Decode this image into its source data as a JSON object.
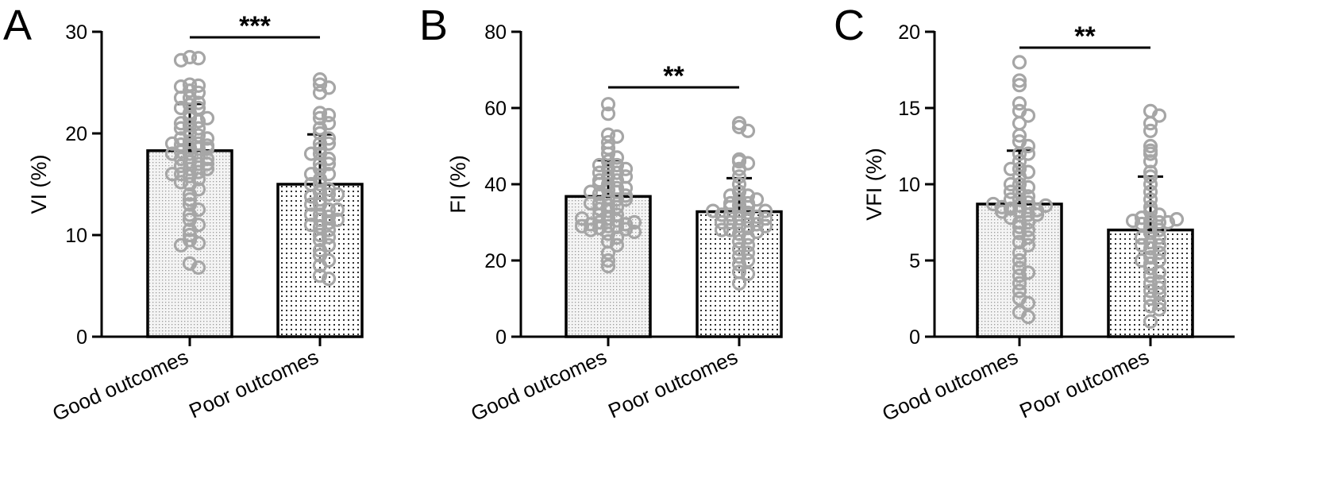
{
  "chart_data": [
    {
      "type": "bar",
      "panel": "A",
      "ylabel": "VI (%)",
      "ylim": [
        0,
        30
      ],
      "yticks": [
        0,
        10,
        20,
        30
      ],
      "categories": [
        "Good outcomes",
        "Poor outcomes"
      ],
      "values": [
        18.3,
        15.0
      ],
      "error_sd": [
        4.6,
        4.9
      ],
      "significance": "***",
      "points": [
        [
          27.5,
          27.4,
          27.2,
          24.8,
          24.7,
          24.6,
          24.2,
          24.0,
          23.5,
          23.0,
          22.8,
          22.5,
          22.0,
          21.5,
          21.2,
          21.0,
          20.8,
          20.5,
          20.0,
          19.8,
          19.5,
          19.2,
          19.0,
          18.9,
          18.8,
          18.6,
          18.5,
          18.2,
          18.0,
          17.8,
          17.5,
          17.2,
          17.0,
          16.8,
          16.5,
          16.2,
          16.0,
          15.8,
          15.5,
          15.2,
          15.0,
          14.5,
          14.0,
          13.5,
          13.0,
          12.5,
          12.0,
          11.5,
          11.0,
          10.5,
          10.0,
          9.5,
          9.2,
          9.0,
          7.2,
          6.8,
          16.5,
          17.5,
          18.5,
          19.5,
          20.5,
          21.5,
          22.5,
          23.5,
          16.0,
          17.0,
          18.0,
          19.0
        ],
        [
          25.3,
          24.8,
          24.5,
          24.0,
          22.0,
          21.8,
          21.5,
          21.0,
          20.5,
          20.0,
          19.5,
          19.0,
          18.5,
          18.0,
          17.5,
          17.0,
          16.5,
          16.0,
          15.5,
          15.0,
          14.5,
          14.2,
          14.0,
          13.8,
          13.5,
          13.0,
          12.5,
          12.0,
          11.8,
          11.5,
          11.2,
          11.0,
          10.8,
          10.5,
          10.0,
          9.8,
          9.5,
          9.0,
          8.5,
          8.0,
          7.5,
          7.0,
          6.0,
          5.7,
          12.0,
          13.0,
          14.0,
          15.0,
          16.0,
          17.0,
          18.0,
          19.0,
          11.5,
          12.5
        ]
      ]
    },
    {
      "type": "bar",
      "panel": "B",
      "ylabel": "FI (%)",
      "ylim": [
        0,
        80
      ],
      "yticks": [
        0,
        20,
        40,
        60,
        80
      ],
      "categories": [
        "Good outcomes",
        "Poor outcomes"
      ],
      "values": [
        36.8,
        32.8
      ],
      "error_sd": [
        9.5,
        8.8
      ],
      "significance": "**",
      "points": [
        [
          61.0,
          58.5,
          53.0,
          52.5,
          51.0,
          49.5,
          48.0,
          47.0,
          46.0,
          45.0,
          44.0,
          43.0,
          42.0,
          41.0,
          40.0,
          39.0,
          38.5,
          38.0,
          37.5,
          37.0,
          36.5,
          36.0,
          35.0,
          34.5,
          34.0,
          33.5,
          33.0,
          32.0,
          31.0,
          30.5,
          30.0,
          29.5,
          29.0,
          28.8,
          28.5,
          28.2,
          28.0,
          27.5,
          27.0,
          26.0,
          25.0,
          24.0,
          22.0,
          20.0,
          18.5,
          29.0,
          29.5,
          30.0,
          31.0,
          32.0,
          40.0,
          41.0,
          42.0,
          43.0,
          44.0,
          45.0,
          38.0,
          39.0,
          36.0,
          35.0
        ],
        [
          56.0,
          55.0,
          54.0,
          46.5,
          46.0,
          45.5,
          44.0,
          42.0,
          40.0,
          38.0,
          37.0,
          36.0,
          35.0,
          34.5,
          34.0,
          33.0,
          32.5,
          32.0,
          31.5,
          31.0,
          30.5,
          30.0,
          29.5,
          29.0,
          28.5,
          28.0,
          27.5,
          27.0,
          26.0,
          25.0,
          24.0,
          23.0,
          22.0,
          21.0,
          20.0,
          19.0,
          17.0,
          16.5,
          14.0,
          30.0,
          31.0,
          32.0,
          33.0,
          34.0,
          35.0,
          28.0,
          29.0,
          36.0,
          37.0,
          33.0
        ]
      ]
    },
    {
      "type": "bar",
      "panel": "C",
      "ylabel": "VFI (%)",
      "ylim": [
        0,
        20
      ],
      "yticks": [
        0,
        5,
        10,
        15,
        20
      ],
      "categories": [
        "Good outcomes",
        "Poor outcomes"
      ],
      "values": [
        8.7,
        7.0
      ],
      "error_sd": [
        3.5,
        3.5
      ],
      "significance": "**",
      "points": [
        [
          18.0,
          16.8,
          16.5,
          15.3,
          14.8,
          14.5,
          14.0,
          13.2,
          12.8,
          12.5,
          12.0,
          11.5,
          11.0,
          10.8,
          10.5,
          10.0,
          9.8,
          9.5,
          9.2,
          9.0,
          8.8,
          8.6,
          8.5,
          8.4,
          8.3,
          8.2,
          8.0,
          7.8,
          7.5,
          7.2,
          7.0,
          6.8,
          6.5,
          6.2,
          6.0,
          5.5,
          5.0,
          4.5,
          4.2,
          4.0,
          3.5,
          3.0,
          2.5,
          2.2,
          1.6,
          1.3,
          8.5,
          8.6,
          8.7,
          9.0,
          9.5,
          10.0,
          11.0,
          12.0,
          7.5,
          8.0,
          8.2
        ],
        [
          14.8,
          14.5,
          14.0,
          13.5,
          12.5,
          12.2,
          12.0,
          11.5,
          10.8,
          10.5,
          10.0,
          9.5,
          9.0,
          8.5,
          8.2,
          8.0,
          7.8,
          7.6,
          7.5,
          7.4,
          7.2,
          7.0,
          6.8,
          6.5,
          6.2,
          6.0,
          5.8,
          5.5,
          5.2,
          5.0,
          4.5,
          4.2,
          4.0,
          3.5,
          3.2,
          3.0,
          2.8,
          2.5,
          2.2,
          2.0,
          1.8,
          1.0,
          7.5,
          7.6,
          7.7,
          6.0,
          6.5,
          5.0,
          4.8,
          3.6
        ]
      ]
    }
  ]
}
